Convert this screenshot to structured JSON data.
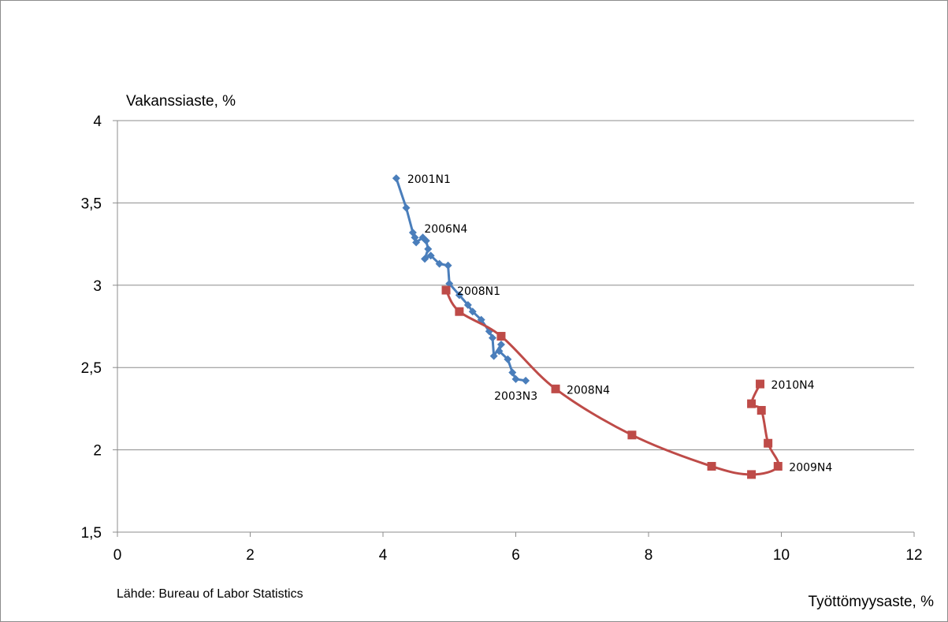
{
  "chart_data": {
    "type": "scatter",
    "xlabel": "Työttömyysaste, %",
    "ylabel": "Vakanssiaste, %",
    "source_note": "Lähde: Bureau of Labor Statistics",
    "xlim": [
      0,
      12
    ],
    "ylim": [
      1.5,
      4
    ],
    "x_ticks": [
      "0",
      "2",
      "4",
      "6",
      "8",
      "10",
      "12"
    ],
    "y_ticks": [
      "1,5",
      "2",
      "2,5",
      "3",
      "3,5",
      "4"
    ],
    "grid": "horizontal",
    "series": [
      {
        "color": "#4a7ebb",
        "marker": "diamond",
        "smooth": false,
        "points": [
          {
            "x": 4.2,
            "y": 3.65,
            "label": "2001N1"
          },
          {
            "x": 4.35,
            "y": 3.47
          },
          {
            "x": 4.45,
            "y": 3.32
          },
          {
            "x": 4.48,
            "y": 3.29
          },
          {
            "x": 4.5,
            "y": 3.26
          },
          {
            "x": 4.6,
            "y": 3.29
          },
          {
            "x": 4.65,
            "y": 3.27
          },
          {
            "x": 4.68,
            "y": 3.22
          },
          {
            "x": 4.63,
            "y": 3.16
          },
          {
            "x": 4.72,
            "y": 3.18
          },
          {
            "x": 4.85,
            "y": 3.13
          },
          {
            "x": 4.98,
            "y": 3.12
          },
          {
            "x": 5.0,
            "y": 3.01
          },
          {
            "x": 5.15,
            "y": 2.94
          },
          {
            "x": 5.28,
            "y": 2.88
          },
          {
            "x": 5.35,
            "y": 2.84
          },
          {
            "x": 5.48,
            "y": 2.79
          },
          {
            "x": 5.6,
            "y": 2.72
          },
          {
            "x": 5.65,
            "y": 2.68
          },
          {
            "x": 5.67,
            "y": 2.57
          },
          {
            "x": 5.78,
            "y": 2.64
          },
          {
            "x": 5.75,
            "y": 2.6
          },
          {
            "x": 5.88,
            "y": 2.55
          },
          {
            "x": 5.95,
            "y": 2.47
          },
          {
            "x": 6.0,
            "y": 2.43
          },
          {
            "x": 6.15,
            "y": 2.42,
            "label": "2003N3"
          }
        ]
      },
      {
        "color": "#be4b48",
        "marker": "square",
        "smooth": true,
        "points": [
          {
            "x": 4.95,
            "y": 2.97,
            "label": "2008N1"
          },
          {
            "x": 5.15,
            "y": 2.84
          },
          {
            "x": 5.78,
            "y": 2.69
          },
          {
            "x": 6.6,
            "y": 2.37,
            "label": "2008N4"
          },
          {
            "x": 7.75,
            "y": 2.09
          },
          {
            "x": 8.95,
            "y": 1.9
          },
          {
            "x": 9.55,
            "y": 1.85
          },
          {
            "x": 9.95,
            "y": 1.9,
            "label": "2009N4"
          },
          {
            "x": 9.8,
            "y": 2.04
          },
          {
            "x": 9.7,
            "y": 2.24
          },
          {
            "x": 9.55,
            "y": 2.28
          },
          {
            "x": 9.68,
            "y": 2.4,
            "label": "2010N4"
          }
        ]
      }
    ],
    "extra_labels": [
      {
        "text": "2006N4",
        "x": 4.55,
        "y": 3.31
      }
    ]
  }
}
